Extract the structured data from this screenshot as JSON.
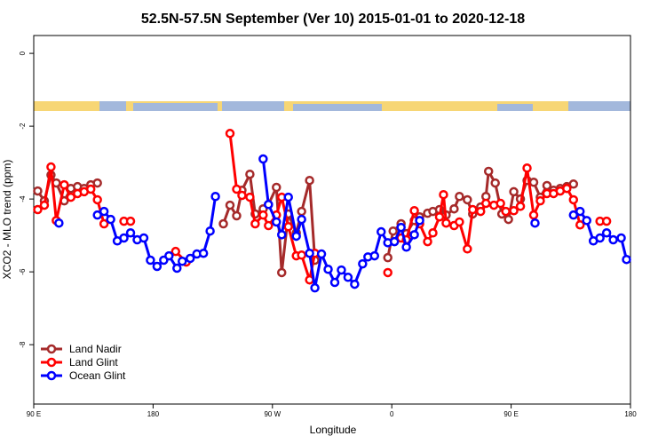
{
  "chart_data": {
    "type": "line",
    "title": "52.5N-57.5N September (Ver 10)   2015-01-01 to 2020-12-18",
    "x_label": "Longitude",
    "y_label": "XCO2 - MLO trend (ppm)",
    "xlim": [
      90,
      540
    ],
    "ylim": [
      -9.63,
      0.49
    ],
    "xticks": [
      {
        "value": 90,
        "label": "90 E"
      },
      {
        "value": 180,
        "label": "180"
      },
      {
        "value": 270,
        "label": "90 W"
      },
      {
        "value": 360,
        "label": "0"
      },
      {
        "value": 450,
        "label": "90 E"
      },
      {
        "value": 540,
        "label": "180"
      }
    ],
    "yticks": [
      0,
      -2,
      -4,
      -6,
      -8
    ],
    "legend": "bottom-left",
    "series": [
      {
        "name": "Land Nadir",
        "color": "#a52a2a",
        "x": [
          93,
          98,
          103,
          107,
          113,
          118,
          123,
          128,
          133,
          138,
          200,
          233,
          238,
          243,
          247,
          253,
          257,
          263,
          267,
          273,
          277,
          282,
          288,
          292,
          298,
          302,
          330,
          357,
          361,
          367,
          371,
          377,
          381,
          387,
          391,
          396,
          401,
          407,
          411,
          417,
          421,
          427,
          431,
          433,
          438,
          443,
          448,
          452,
          457,
          462,
          467,
          472,
          477,
          482,
          487,
          492,
          497
        ],
        "values": [
          -3.78,
          -4.05,
          -3.34,
          -3.56,
          -4.05,
          -3.71,
          -3.66,
          -3.71,
          -3.61,
          -3.56,
          null,
          -4.68,
          -4.17,
          -4.46,
          -3.76,
          -3.32,
          -4.41,
          -4.27,
          -4.15,
          -3.68,
          -6.02,
          -4.41,
          -4.93,
          -4.34,
          -3.49,
          -5.68,
          null,
          -5.61,
          -4.88,
          -4.68,
          -4.95,
          -4.59,
          -4.49,
          -4.39,
          -4.34,
          -4.29,
          -4.44,
          -4.27,
          -3.93,
          -4.02,
          -4.41,
          -4.22,
          -3.93,
          -3.24,
          -3.56,
          -4.41,
          -4.56,
          -3.8,
          -4.0,
          -3.49,
          -3.54,
          -3.95,
          -3.63,
          -3.76,
          -3.71,
          -3.66,
          -3.59
        ]
      },
      {
        "name": "Land Glint",
        "color": "#ff0000",
        "x": [
          93,
          98,
          103,
          107,
          113,
          118,
          123,
          128,
          133,
          138,
          143,
          150,
          158,
          163,
          180,
          197,
          205,
          220,
          238,
          243,
          247,
          253,
          257,
          263,
          267,
          273,
          277,
          282,
          288,
          292,
          298,
          302,
          330,
          357,
          362,
          367,
          371,
          377,
          381,
          387,
          391,
          396,
          399,
          401,
          407,
          411,
          417,
          421,
          427,
          431,
          437,
          442,
          446,
          452,
          457,
          462,
          467,
          472,
          477,
          482,
          487,
          492,
          497,
          502,
          510,
          517,
          522
        ],
        "values": [
          -4.29,
          -4.17,
          -3.12,
          -4.59,
          -3.61,
          -3.95,
          -3.85,
          -3.8,
          -3.73,
          -4.02,
          -4.68,
          null,
          -4.61,
          -4.61,
          null,
          -5.44,
          -5.73,
          null,
          -2.2,
          -3.73,
          -3.9,
          -3.95,
          -4.68,
          -4.44,
          -4.73,
          -4.44,
          -3.95,
          -4.76,
          -5.56,
          -5.54,
          -6.22,
          -5.49,
          null,
          -6.02,
          null,
          -5.07,
          -5.12,
          -4.32,
          -4.68,
          -5.17,
          -4.93,
          -4.49,
          -3.88,
          -4.66,
          -4.73,
          -4.63,
          -5.37,
          -4.29,
          -4.34,
          -4.12,
          -4.17,
          -4.12,
          -4.34,
          -4.32,
          -4.2,
          -3.15,
          -4.44,
          -4.05,
          -3.85,
          -3.85,
          -3.78,
          -3.71,
          -4.02,
          -4.71,
          null,
          -4.61,
          -4.61
        ]
      },
      {
        "name": "Ocean Glint",
        "color": "#0000ff",
        "x": [
          109,
          111,
          138,
          143,
          148,
          153,
          158,
          163,
          168,
          173,
          178,
          183,
          188,
          192,
          198,
          202,
          208,
          213,
          218,
          223,
          227,
          245,
          263,
          267,
          273,
          277,
          282,
          288,
          292,
          298,
          302,
          307,
          312,
          317,
          322,
          327,
          332,
          338,
          342,
          347,
          352,
          357,
          362,
          367,
          371,
          377,
          381,
          420,
          468,
          480,
          497,
          502,
          507,
          512,
          517,
          522,
          527,
          533,
          537
        ],
        "values": [
          -4.66,
          null,
          -4.44,
          -4.34,
          -4.56,
          -5.15,
          -5.07,
          -4.93,
          -5.12,
          -5.07,
          -5.68,
          -5.85,
          -5.68,
          -5.56,
          -5.9,
          -5.71,
          -5.63,
          -5.51,
          -5.49,
          -4.88,
          -3.93,
          null,
          -2.9,
          -4.15,
          -4.63,
          -4.98,
          -3.95,
          -5.02,
          -4.56,
          -5.49,
          -6.44,
          -5.51,
          -5.93,
          -6.29,
          -5.95,
          -6.15,
          -6.34,
          -5.78,
          -5.59,
          -5.56,
          -4.9,
          -5.2,
          -5.17,
          -4.78,
          -5.32,
          -4.98,
          -4.59,
          null,
          -4.66,
          null,
          -4.44,
          -4.34,
          -4.59,
          -5.15,
          -5.07,
          -4.93,
          -5.12,
          -5.07,
          -5.66
        ]
      }
    ]
  }
}
